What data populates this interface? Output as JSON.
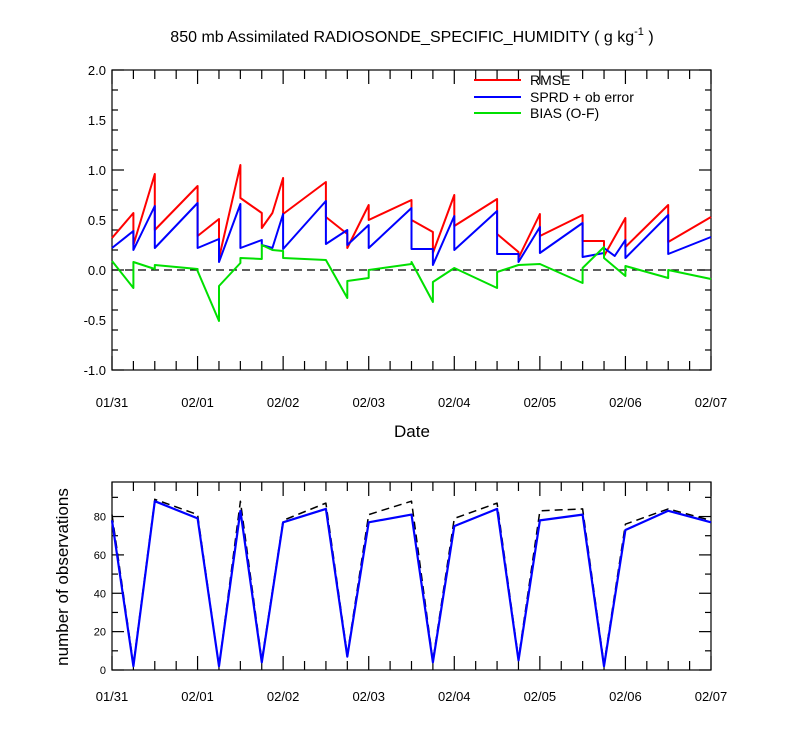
{
  "chart_data": [
    {
      "type": "line",
      "title_main": "850 mb Assimilated RADIOSONDE_SPECIFIC_HUMIDITY ( g kg",
      "title_sup": "-1",
      "title_end": " )",
      "xlabel": "Date",
      "ylabel": "",
      "xlim": [
        "01/31 00Z",
        "02/07 00Z"
      ],
      "ylim": [
        -1.0,
        2.0
      ],
      "yticks": [
        "2.0",
        "1.5",
        "1.0",
        "0.5",
        "0.0",
        "-0.5",
        "-1.0"
      ],
      "xtick_labels": [
        "01/31",
        "02/01",
        "02/02",
        "02/03",
        "02/04",
        "02/05",
        "02/06",
        "02/07"
      ],
      "legend_position": "top-right",
      "colors": {
        "rmse": "#ff0000",
        "sprd": "#0000ff",
        "bias": "#00e000",
        "zero": "#000000"
      },
      "series": [
        {
          "name": "RMSE",
          "points": [
            [
              0.0,
              0.32
            ],
            [
              0.25,
              0.57
            ],
            [
              0.25,
              0.25
            ],
            [
              0.5,
              0.96
            ],
            [
              0.5,
              0.4
            ],
            [
              1.0,
              0.84
            ],
            [
              1.0,
              0.34
            ],
            [
              1.25,
              0.51
            ],
            [
              1.25,
              0.12
            ],
            [
              1.5,
              1.05
            ],
            [
              1.5,
              0.72
            ],
            [
              1.75,
              0.57
            ],
            [
              1.75,
              0.42
            ],
            [
              1.875,
              0.57
            ],
            [
              2.0,
              0.92
            ],
            [
              2.0,
              0.56
            ],
            [
              2.5,
              0.88
            ],
            [
              2.5,
              0.53
            ],
            [
              2.75,
              0.36
            ],
            [
              2.75,
              0.22
            ],
            [
              3.0,
              0.65
            ],
            [
              3.0,
              0.5
            ],
            [
              3.5,
              0.7
            ],
            [
              3.5,
              0.5
            ],
            [
              3.75,
              0.38
            ],
            [
              3.75,
              0.17
            ],
            [
              4.0,
              0.75
            ],
            [
              4.0,
              0.44
            ],
            [
              4.5,
              0.71
            ],
            [
              4.5,
              0.36
            ],
            [
              4.75,
              0.18
            ],
            [
              4.75,
              0.12
            ],
            [
              5.0,
              0.56
            ],
            [
              5.0,
              0.34
            ],
            [
              5.5,
              0.55
            ],
            [
              5.5,
              0.29
            ],
            [
              5.75,
              0.29
            ],
            [
              5.75,
              0.14
            ],
            [
              6.0,
              0.52
            ],
            [
              6.0,
              0.23
            ],
            [
              6.5,
              0.65
            ],
            [
              6.5,
              0.28
            ],
            [
              7.0,
              0.53
            ]
          ]
        },
        {
          "name": "SPRD + ob error",
          "points": [
            [
              0.0,
              0.22
            ],
            [
              0.25,
              0.39
            ],
            [
              0.25,
              0.2
            ],
            [
              0.5,
              0.64
            ],
            [
              0.5,
              0.22
            ],
            [
              1.0,
              0.67
            ],
            [
              1.0,
              0.22
            ],
            [
              1.25,
              0.31
            ],
            [
              1.25,
              0.08
            ],
            [
              1.5,
              0.66
            ],
            [
              1.5,
              0.22
            ],
            [
              1.75,
              0.3
            ],
            [
              1.75,
              0.25
            ],
            [
              1.875,
              0.22
            ],
            [
              2.0,
              0.56
            ],
            [
              2.0,
              0.21
            ],
            [
              2.5,
              0.69
            ],
            [
              2.5,
              0.26
            ],
            [
              2.75,
              0.4
            ],
            [
              2.75,
              0.25
            ],
            [
              3.0,
              0.45
            ],
            [
              3.0,
              0.22
            ],
            [
              3.5,
              0.62
            ],
            [
              3.5,
              0.21
            ],
            [
              3.75,
              0.21
            ],
            [
              3.75,
              0.05
            ],
            [
              4.0,
              0.54
            ],
            [
              4.0,
              0.2
            ],
            [
              4.5,
              0.59
            ],
            [
              4.5,
              0.16
            ],
            [
              4.75,
              0.16
            ],
            [
              4.75,
              0.08
            ],
            [
              5.0,
              0.43
            ],
            [
              5.0,
              0.17
            ],
            [
              5.5,
              0.47
            ],
            [
              5.5,
              0.13
            ],
            [
              5.75,
              0.17
            ],
            [
              5.75,
              0.22
            ],
            [
              5.875,
              0.14
            ],
            [
              6.0,
              0.3
            ],
            [
              6.0,
              0.12
            ],
            [
              6.5,
              0.55
            ],
            [
              6.5,
              0.16
            ],
            [
              7.0,
              0.33
            ]
          ]
        },
        {
          "name": "BIAS (O-F)",
          "points": [
            [
              0.0,
              0.09
            ],
            [
              0.25,
              -0.18
            ],
            [
              0.25,
              0.08
            ],
            [
              0.5,
              0.01
            ],
            [
              0.5,
              0.05
            ],
            [
              1.0,
              0.01
            ],
            [
              1.0,
              -0.01
            ],
            [
              1.25,
              -0.51
            ],
            [
              1.25,
              -0.16
            ],
            [
              1.5,
              0.07
            ],
            [
              1.5,
              0.12
            ],
            [
              1.75,
              0.11
            ],
            [
              1.75,
              0.25
            ],
            [
              1.875,
              0.2
            ],
            [
              2.0,
              0.19
            ],
            [
              2.0,
              0.12
            ],
            [
              2.5,
              0.1
            ],
            [
              2.75,
              -0.28
            ],
            [
              2.75,
              -0.11
            ],
            [
              3.0,
              -0.08
            ],
            [
              3.0,
              0.0
            ],
            [
              3.5,
              0.06
            ],
            [
              3.5,
              0.08
            ],
            [
              3.75,
              -0.32
            ],
            [
              3.75,
              -0.12
            ],
            [
              4.0,
              0.02
            ],
            [
              4.5,
              -0.18
            ],
            [
              4.5,
              -0.02
            ],
            [
              4.75,
              0.05
            ],
            [
              5.0,
              0.06
            ],
            [
              5.5,
              -0.13
            ],
            [
              5.5,
              0.02
            ],
            [
              5.75,
              0.23
            ],
            [
              5.75,
              0.12
            ],
            [
              6.0,
              -0.06
            ],
            [
              6.0,
              0.04
            ],
            [
              6.5,
              -0.08
            ],
            [
              6.5,
              0.0
            ],
            [
              7.0,
              -0.09
            ]
          ]
        }
      ]
    },
    {
      "type": "line",
      "ylabel": "number of observations",
      "xlim": [
        "01/31 00Z",
        "02/07 00Z"
      ],
      "ylim": [
        0,
        98
      ],
      "yticks": [
        "80",
        "60",
        "40",
        "20",
        "0"
      ],
      "xtick_labels": [
        "01/31",
        "02/01",
        "02/02",
        "02/03",
        "02/04",
        "02/05",
        "02/06",
        "02/07"
      ],
      "colors": {
        "assimilated": "#0000ff",
        "possible": "#000000"
      },
      "series": [
        {
          "style": "solid",
          "points": [
            [
              0.0,
              78
            ],
            [
              0.25,
              2
            ],
            [
              0.5,
              88
            ],
            [
              1.0,
              79
            ],
            [
              1.25,
              2
            ],
            [
              1.5,
              83
            ],
            [
              1.75,
              4
            ],
            [
              2.0,
              77
            ],
            [
              2.5,
              84
            ],
            [
              2.75,
              7
            ],
            [
              3.0,
              77
            ],
            [
              3.5,
              81
            ],
            [
              3.75,
              4
            ],
            [
              4.0,
              75
            ],
            [
              4.5,
              84
            ],
            [
              4.75,
              5
            ],
            [
              5.0,
              78
            ],
            [
              5.5,
              81
            ],
            [
              5.75,
              2
            ],
            [
              6.0,
              73
            ],
            [
              6.5,
              83
            ],
            [
              7.0,
              77
            ]
          ]
        },
        {
          "style": "dashed",
          "points": [
            [
              0.0,
              81
            ],
            [
              0.25,
              3
            ],
            [
              0.5,
              89
            ],
            [
              1.0,
              81
            ],
            [
              1.25,
              2
            ],
            [
              1.5,
              88
            ],
            [
              1.75,
              5
            ],
            [
              2.0,
              78
            ],
            [
              2.5,
              87
            ],
            [
              2.75,
              8
            ],
            [
              3.0,
              81
            ],
            [
              3.5,
              88
            ],
            [
              3.75,
              5
            ],
            [
              4.0,
              79
            ],
            [
              4.5,
              87
            ],
            [
              4.75,
              6
            ],
            [
              5.0,
              83
            ],
            [
              5.5,
              84
            ],
            [
              5.75,
              3
            ],
            [
              6.0,
              76
            ],
            [
              6.5,
              84
            ],
            [
              7.0,
              78
            ]
          ]
        }
      ]
    }
  ]
}
